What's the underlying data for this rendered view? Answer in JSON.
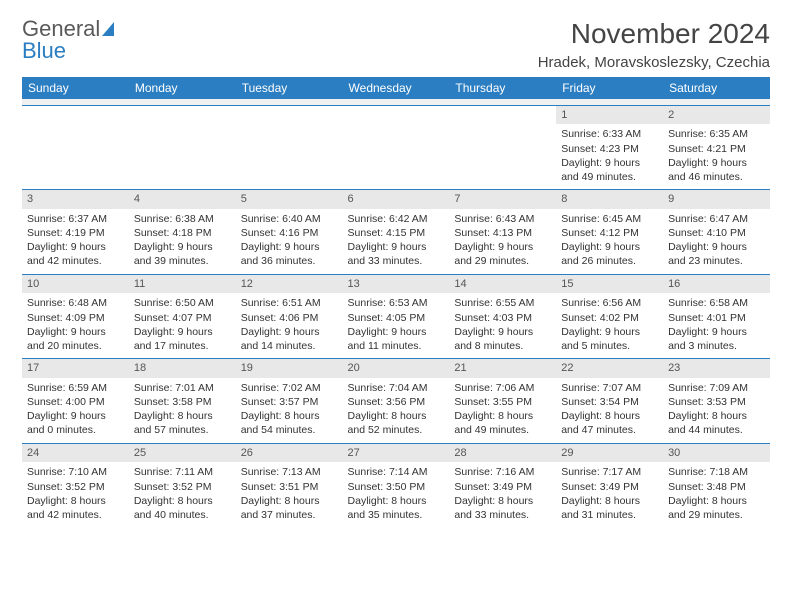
{
  "logo": {
    "top": "General",
    "bottom": "Blue"
  },
  "title": "November 2024",
  "subtitle": "Hradek, Moravskoslezsky, Czechia",
  "dayNames": [
    "Sunday",
    "Monday",
    "Tuesday",
    "Wednesday",
    "Thursday",
    "Friday",
    "Saturday"
  ],
  "colors": {
    "header_bg": "#2b7ec2",
    "header_text": "#ffffff",
    "daynum_bg": "#e8e8e8",
    "border": "#2b7ec2",
    "text": "#333333",
    "background": "#ffffff"
  },
  "typography": {
    "title_fontsize": 28,
    "subtitle_fontsize": 15,
    "dayhead_fontsize": 12,
    "cell_fontsize": 10.5
  },
  "labels": {
    "sunrise": "Sunrise:",
    "sunset": "Sunset:",
    "daylight": "Daylight:"
  },
  "firstDayOffset": 5,
  "days": [
    {
      "n": "1",
      "sunrise": "6:33 AM",
      "sunset": "4:23 PM",
      "daylight": "9 hours and 49 minutes."
    },
    {
      "n": "2",
      "sunrise": "6:35 AM",
      "sunset": "4:21 PM",
      "daylight": "9 hours and 46 minutes."
    },
    {
      "n": "3",
      "sunrise": "6:37 AM",
      "sunset": "4:19 PM",
      "daylight": "9 hours and 42 minutes."
    },
    {
      "n": "4",
      "sunrise": "6:38 AM",
      "sunset": "4:18 PM",
      "daylight": "9 hours and 39 minutes."
    },
    {
      "n": "5",
      "sunrise": "6:40 AM",
      "sunset": "4:16 PM",
      "daylight": "9 hours and 36 minutes."
    },
    {
      "n": "6",
      "sunrise": "6:42 AM",
      "sunset": "4:15 PM",
      "daylight": "9 hours and 33 minutes."
    },
    {
      "n": "7",
      "sunrise": "6:43 AM",
      "sunset": "4:13 PM",
      "daylight": "9 hours and 29 minutes."
    },
    {
      "n": "8",
      "sunrise": "6:45 AM",
      "sunset": "4:12 PM",
      "daylight": "9 hours and 26 minutes."
    },
    {
      "n": "9",
      "sunrise": "6:47 AM",
      "sunset": "4:10 PM",
      "daylight": "9 hours and 23 minutes."
    },
    {
      "n": "10",
      "sunrise": "6:48 AM",
      "sunset": "4:09 PM",
      "daylight": "9 hours and 20 minutes."
    },
    {
      "n": "11",
      "sunrise": "6:50 AM",
      "sunset": "4:07 PM",
      "daylight": "9 hours and 17 minutes."
    },
    {
      "n": "12",
      "sunrise": "6:51 AM",
      "sunset": "4:06 PM",
      "daylight": "9 hours and 14 minutes."
    },
    {
      "n": "13",
      "sunrise": "6:53 AM",
      "sunset": "4:05 PM",
      "daylight": "9 hours and 11 minutes."
    },
    {
      "n": "14",
      "sunrise": "6:55 AM",
      "sunset": "4:03 PM",
      "daylight": "9 hours and 8 minutes."
    },
    {
      "n": "15",
      "sunrise": "6:56 AM",
      "sunset": "4:02 PM",
      "daylight": "9 hours and 5 minutes."
    },
    {
      "n": "16",
      "sunrise": "6:58 AM",
      "sunset": "4:01 PM",
      "daylight": "9 hours and 3 minutes."
    },
    {
      "n": "17",
      "sunrise": "6:59 AM",
      "sunset": "4:00 PM",
      "daylight": "9 hours and 0 minutes."
    },
    {
      "n": "18",
      "sunrise": "7:01 AM",
      "sunset": "3:58 PM",
      "daylight": "8 hours and 57 minutes."
    },
    {
      "n": "19",
      "sunrise": "7:02 AM",
      "sunset": "3:57 PM",
      "daylight": "8 hours and 54 minutes."
    },
    {
      "n": "20",
      "sunrise": "7:04 AM",
      "sunset": "3:56 PM",
      "daylight": "8 hours and 52 minutes."
    },
    {
      "n": "21",
      "sunrise": "7:06 AM",
      "sunset": "3:55 PM",
      "daylight": "8 hours and 49 minutes."
    },
    {
      "n": "22",
      "sunrise": "7:07 AM",
      "sunset": "3:54 PM",
      "daylight": "8 hours and 47 minutes."
    },
    {
      "n": "23",
      "sunrise": "7:09 AM",
      "sunset": "3:53 PM",
      "daylight": "8 hours and 44 minutes."
    },
    {
      "n": "24",
      "sunrise": "7:10 AM",
      "sunset": "3:52 PM",
      "daylight": "8 hours and 42 minutes."
    },
    {
      "n": "25",
      "sunrise": "7:11 AM",
      "sunset": "3:52 PM",
      "daylight": "8 hours and 40 minutes."
    },
    {
      "n": "26",
      "sunrise": "7:13 AM",
      "sunset": "3:51 PM",
      "daylight": "8 hours and 37 minutes."
    },
    {
      "n": "27",
      "sunrise": "7:14 AM",
      "sunset": "3:50 PM",
      "daylight": "8 hours and 35 minutes."
    },
    {
      "n": "28",
      "sunrise": "7:16 AM",
      "sunset": "3:49 PM",
      "daylight": "8 hours and 33 minutes."
    },
    {
      "n": "29",
      "sunrise": "7:17 AM",
      "sunset": "3:49 PM",
      "daylight": "8 hours and 31 minutes."
    },
    {
      "n": "30",
      "sunrise": "7:18 AM",
      "sunset": "3:48 PM",
      "daylight": "8 hours and 29 minutes."
    }
  ]
}
